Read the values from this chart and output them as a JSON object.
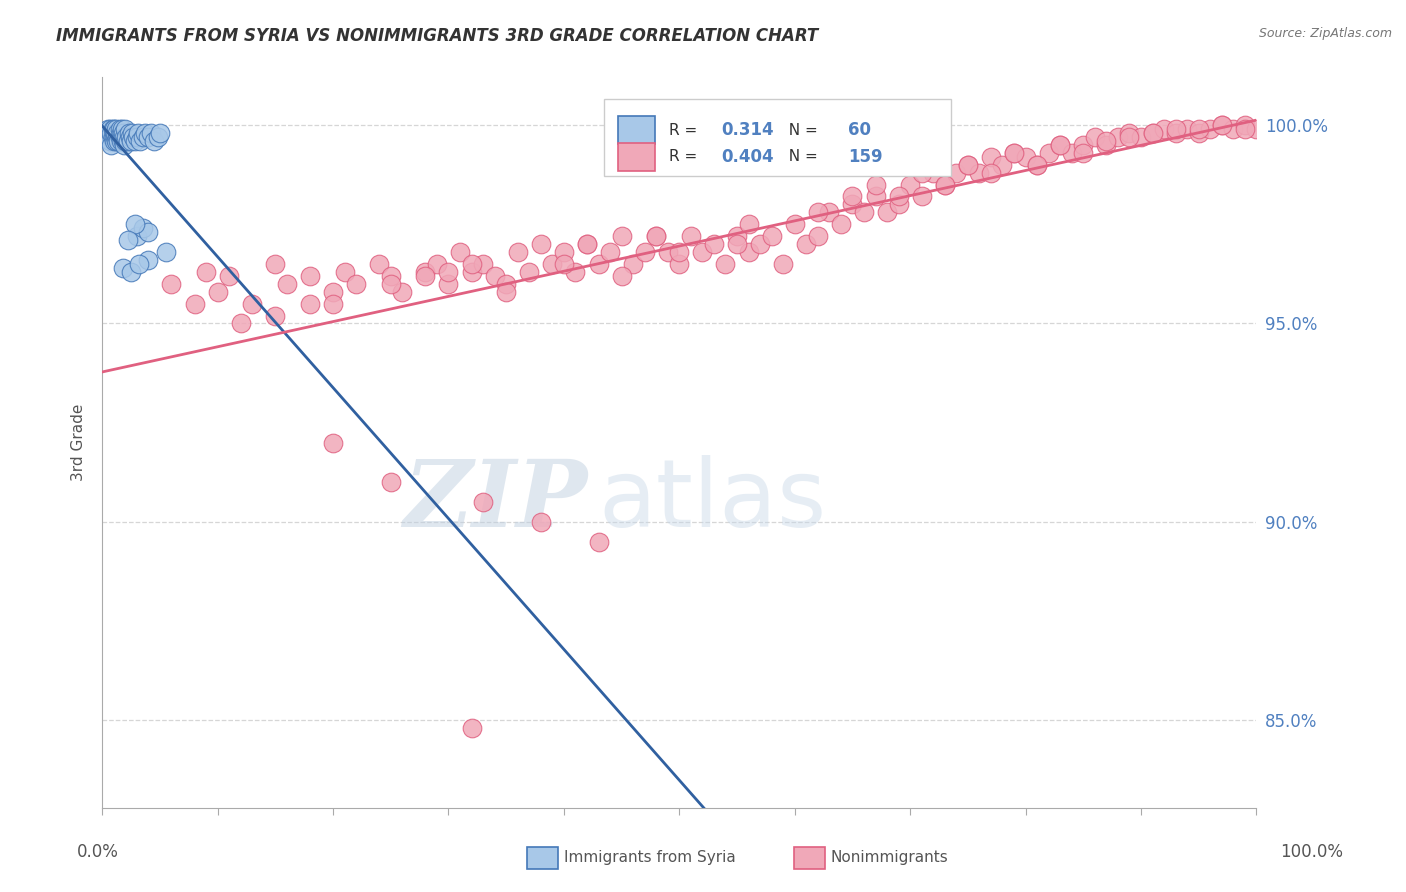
{
  "title": "IMMIGRANTS FROM SYRIA VS NONIMMIGRANTS 3RD GRADE CORRELATION CHART",
  "source": "Source: ZipAtlas.com",
  "ylabel": "3rd Grade",
  "ytick_labels": [
    "85.0%",
    "90.0%",
    "95.0%",
    "100.0%"
  ],
  "ytick_values": [
    0.85,
    0.9,
    0.95,
    1.0
  ],
  "xlim": [
    0.0,
    1.0
  ],
  "ylim": [
    0.828,
    1.012
  ],
  "legend_blue_r": "0.314",
  "legend_blue_n": "60",
  "legend_pink_r": "0.404",
  "legend_pink_n": "159",
  "blue_fill": "#a8c8e8",
  "blue_edge": "#4478b8",
  "pink_fill": "#f0a8b8",
  "pink_edge": "#e06080",
  "blue_line_color": "#3060a0",
  "pink_line_color": "#e06080",
  "watermark_zip": "ZIP",
  "watermark_atlas": "atlas",
  "watermark_zip_color": "#c0d0e0",
  "watermark_atlas_color": "#c8d8e8",
  "background_color": "#ffffff",
  "right_tick_color": "#5080c0",
  "grid_color": "#cccccc",
  "title_color": "#333333",
  "source_color": "#777777"
}
